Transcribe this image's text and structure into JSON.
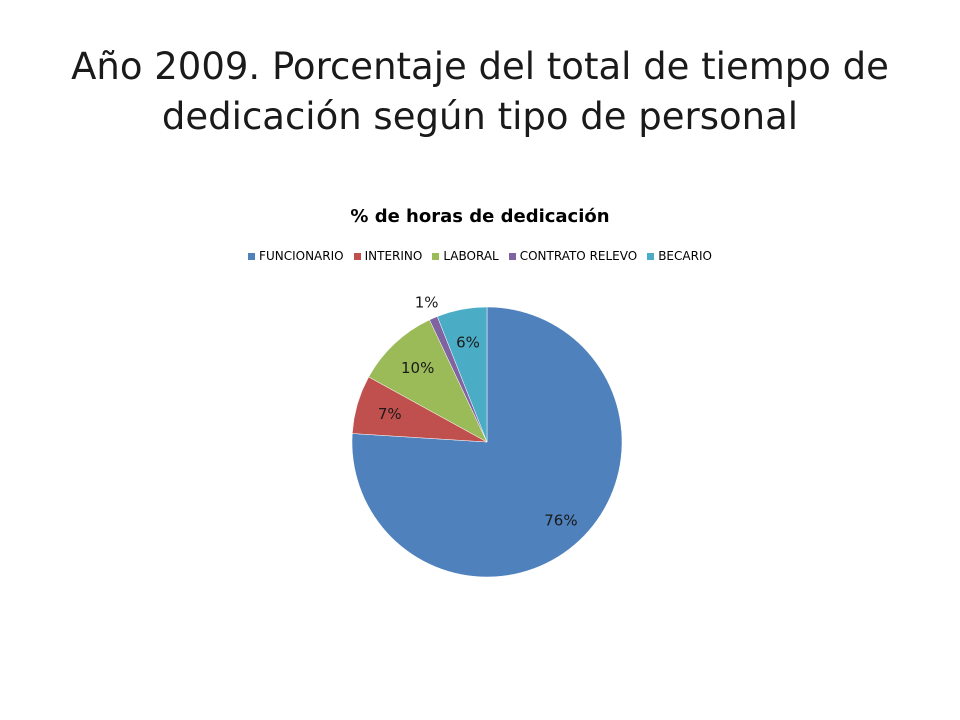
{
  "slide": {
    "title_line1": "Año 2009. Porcentaje del total de tiempo de",
    "title_line2": "dedicación según tipo de personal"
  },
  "chart_data": {
    "type": "pie",
    "title": "% de horas de dedicación",
    "legend_position": "top",
    "start_angle_deg": 0,
    "direction": "clockwise",
    "slices": [
      {
        "name": "FUNCIONARIO",
        "value": 76,
        "label": "76%",
        "color": "#4F81BD"
      },
      {
        "name": "INTERINO",
        "value": 7,
        "label": "7%",
        "color": "#C0504D"
      },
      {
        "name": "LABORAL",
        "value": 10,
        "label": "10%",
        "color": "#9BBB59"
      },
      {
        "name": "CONTRATO RELEVO",
        "value": 1,
        "label": "1%",
        "color": "#8064A2"
      },
      {
        "name": "BECARIO",
        "value": 6,
        "label": "6%",
        "color": "#4BACC6"
      }
    ]
  }
}
